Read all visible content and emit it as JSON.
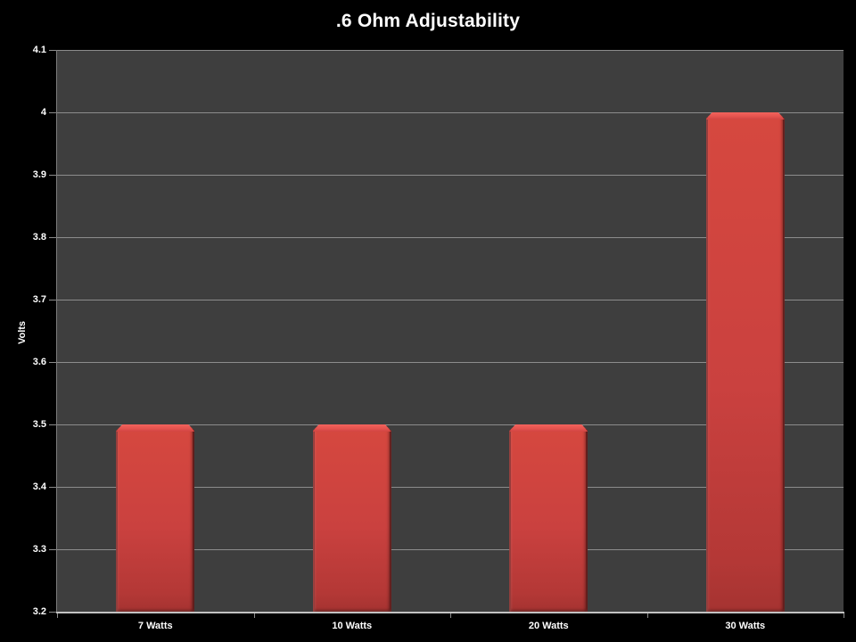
{
  "chart_data": {
    "type": "bar",
    "title": ".6 Ohm Adjustability",
    "xlabel": "",
    "ylabel": "Volts",
    "categories": [
      "7 Watts",
      "10 Watts",
      "20 Watts",
      "30 Watts"
    ],
    "values": [
      3.5,
      3.5,
      3.5,
      4
    ],
    "ylim": [
      3.2,
      4.1
    ],
    "yticks": [
      {
        "label": "4.1",
        "value": 4.1
      },
      {
        "label": "4",
        "value": 4.0
      },
      {
        "label": "3.9",
        "value": 3.9
      },
      {
        "label": "3.8",
        "value": 3.8
      },
      {
        "label": "3.7",
        "value": 3.7
      },
      {
        "label": "3.6",
        "value": 3.6
      },
      {
        "label": "3.5",
        "value": 3.5
      },
      {
        "label": "3.4",
        "value": 3.4
      },
      {
        "label": "3.3",
        "value": 3.3
      },
      {
        "label": "3.2",
        "value": 3.2
      }
    ],
    "grid": true,
    "legend": false,
    "bar_fill": "#c84140",
    "bar_highlight": "#ee5a55",
    "bar_edge": "#8e2b29",
    "plot_bg": "#3e3e3e",
    "grid_color": "#8c8c8c",
    "axis_color": "#c2c2c2",
    "text_color": "#ffffff",
    "page_bg": "#000000"
  }
}
